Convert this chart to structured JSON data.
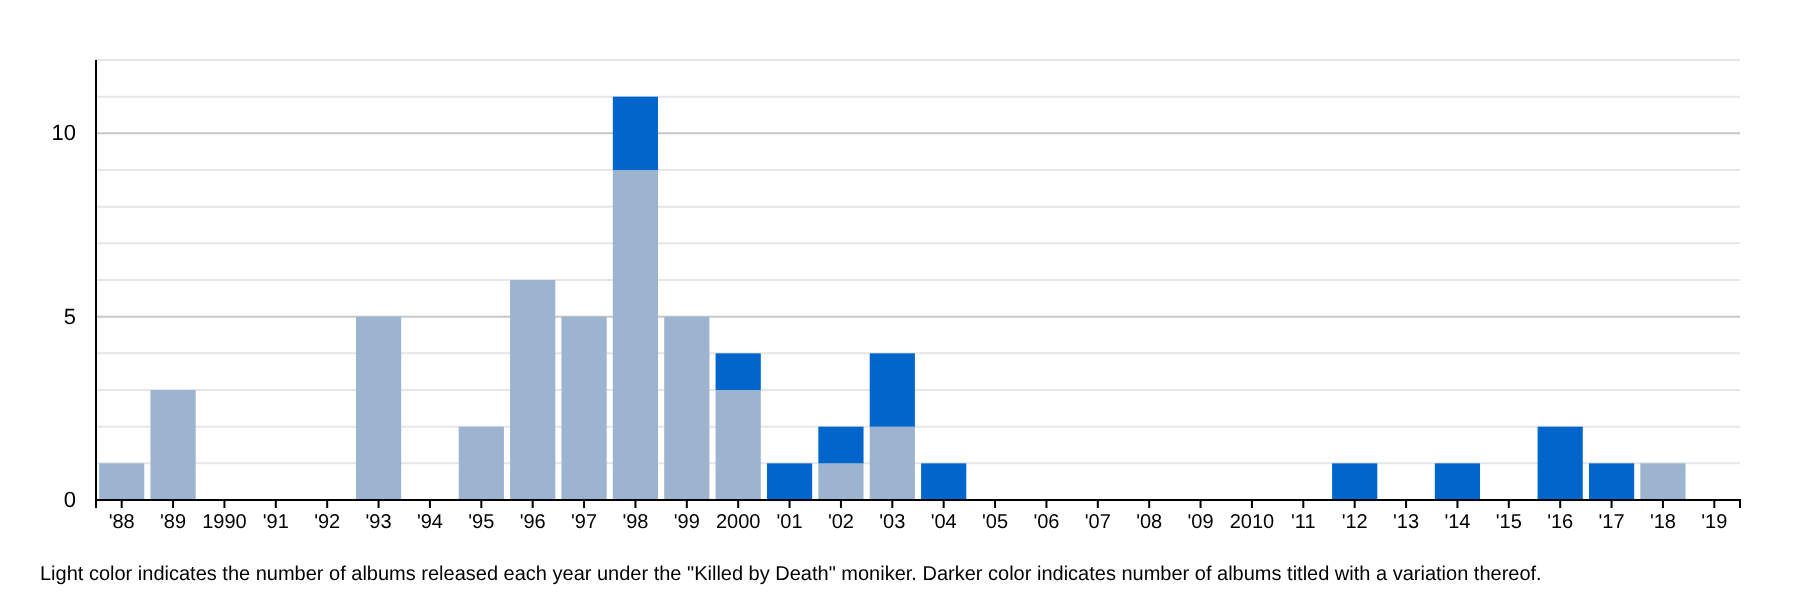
{
  "chart_data": {
    "type": "bar",
    "stacked": true,
    "categories": [
      "'88",
      "'89",
      "1990",
      "'91",
      "'92",
      "'93",
      "'94",
      "'95",
      "'96",
      "'97",
      "'98",
      "'99",
      "2000",
      "'01",
      "'02",
      "'03",
      "'04",
      "'05",
      "'06",
      "'07",
      "'08",
      "'09",
      "2010",
      "'11",
      "'12",
      "'13",
      "'14",
      "'15",
      "'16",
      "'17",
      "'18",
      "'19"
    ],
    "series": [
      {
        "color": "#9cb4cf",
        "values": [
          1,
          3,
          0,
          0,
          0,
          5,
          0,
          2,
          6,
          5,
          9,
          5,
          3,
          0,
          1,
          2,
          0,
          0,
          0,
          0,
          0,
          0,
          0,
          0,
          0,
          0,
          0,
          0,
          0,
          0,
          1,
          0
        ]
      },
      {
        "color": "#0066cc",
        "values": [
          0,
          0,
          0,
          0,
          0,
          0,
          0,
          0,
          0,
          0,
          2,
          0,
          1,
          1,
          1,
          2,
          1,
          0,
          0,
          0,
          0,
          0,
          0,
          0,
          1,
          0,
          1,
          0,
          2,
          1,
          0,
          0
        ]
      }
    ],
    "ylim": [
      0,
      12
    ],
    "yticks": [
      0,
      {
        "value": 1,
        "label": null
      },
      {
        "value": 2,
        "label": null
      },
      {
        "value": 3,
        "label": null
      },
      {
        "value": 4,
        "label": null
      },
      5,
      {
        "value": 6,
        "label": null
      },
      {
        "value": 7,
        "label": null
      },
      {
        "value": 8,
        "label": null
      },
      {
        "value": 9,
        "label": null
      },
      10,
      {
        "value": 11,
        "label": null
      },
      {
        "value": 12,
        "label": null
      }
    ],
    "grid": "y",
    "annotations": [
      "Light color indicates the number of albums released each year under the \"Killed by Death\" moniker. Darker color indicates number of albums titled with a variation thereof."
    ]
  }
}
